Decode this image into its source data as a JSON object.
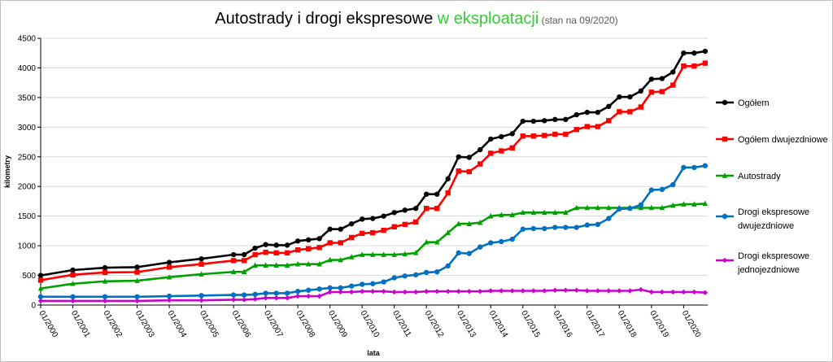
{
  "chart_data": {
    "type": "line",
    "title": {
      "part1": "Autostrady i drogi ekspresowe ",
      "part2": "w eksploatacji",
      "part3": " (stan na 09/2020)"
    },
    "xlabel": "lata",
    "ylabel": "kilometry",
    "ylim": [
      0,
      4500
    ],
    "yticks": [
      0,
      500,
      1000,
      1500,
      2000,
      2500,
      3000,
      3500,
      4000,
      4500
    ],
    "xlim": [
      2000,
      2020.75
    ],
    "xticks": [
      2000,
      2001,
      2002,
      2003,
      2004,
      2005,
      2006,
      2007,
      2008,
      2009,
      2010,
      2011,
      2012,
      2013,
      2014,
      2015,
      2016,
      2017,
      2018,
      2019,
      2020
    ],
    "xtick_labels": [
      "01/2000",
      "01/2001",
      "01/2002",
      "01/2003",
      "01/2004",
      "01/2005",
      "01/2006",
      "01/2007",
      "01/2008",
      "01/2009",
      "01/2010",
      "01/2011",
      "01/2012",
      "01/2013",
      "01/2014",
      "01/2015",
      "01/2016",
      "01/2017",
      "01/2018",
      "01/2019",
      "01/2020"
    ],
    "grid": "horizontal",
    "legend_position": "right",
    "x": [
      2000,
      2001,
      2002,
      2003,
      2004,
      2005,
      2006,
      2006.33,
      2006.67,
      2007,
      2007.33,
      2007.67,
      2008,
      2008.33,
      2008.67,
      2009,
      2009.33,
      2009.67,
      2010,
      2010.33,
      2010.67,
      2011,
      2011.33,
      2011.67,
      2012,
      2012.33,
      2012.67,
      2013,
      2013.33,
      2013.67,
      2014,
      2014.33,
      2014.67,
      2015,
      2015.33,
      2015.67,
      2016,
      2016.33,
      2016.67,
      2017,
      2017.33,
      2017.67,
      2018,
      2018.33,
      2018.67,
      2019,
      2019.33,
      2019.67,
      2020,
      2020.33,
      2020.67
    ],
    "series": [
      {
        "name": "Ogółem",
        "color": "#000000",
        "marker": "circle",
        "values": [
          500,
          590,
          630,
          640,
          720,
          780,
          850,
          850,
          960,
          1020,
          1010,
          1010,
          1080,
          1100,
          1120,
          1280,
          1280,
          1370,
          1450,
          1460,
          1500,
          1560,
          1600,
          1630,
          1870,
          1870,
          2130,
          2500,
          2490,
          2620,
          2800,
          2840,
          2890,
          3100,
          3100,
          3110,
          3130,
          3130,
          3210,
          3250,
          3250,
          3350,
          3510,
          3510,
          3610,
          3810,
          3820,
          3930,
          4250,
          4250,
          4280
        ]
      },
      {
        "name": "Ogółem dwujezdniowe",
        "color": "#ff0000",
        "marker": "square",
        "values": [
          420,
          510,
          550,
          555,
          640,
          690,
          750,
          750,
          850,
          890,
          880,
          880,
          930,
          950,
          970,
          1050,
          1050,
          1140,
          1210,
          1220,
          1260,
          1320,
          1360,
          1400,
          1630,
          1630,
          1890,
          2260,
          2250,
          2380,
          2560,
          2600,
          2650,
          2850,
          2850,
          2860,
          2880,
          2880,
          2960,
          3010,
          3010,
          3110,
          3260,
          3260,
          3340,
          3590,
          3600,
          3710,
          4030,
          4030,
          4080
        ]
      },
      {
        "name": "Autostrady",
        "color": "#00a000",
        "marker": "triangle",
        "values": [
          280,
          360,
          400,
          410,
          470,
          520,
          560,
          560,
          670,
          670,
          670,
          670,
          690,
          690,
          690,
          760,
          760,
          810,
          850,
          850,
          850,
          850,
          860,
          880,
          1060,
          1060,
          1220,
          1370,
          1370,
          1390,
          1500,
          1520,
          1520,
          1560,
          1560,
          1560,
          1560,
          1560,
          1640,
          1640,
          1640,
          1640,
          1640,
          1640,
          1640,
          1640,
          1640,
          1680,
          1700,
          1700,
          1710
        ]
      },
      {
        "name": "Drogi ekspresowe dwujezdniowe",
        "color": "#0070c0",
        "marker": "circle",
        "values": [
          140,
          140,
          140,
          140,
          150,
          160,
          170,
          170,
          180,
          200,
          200,
          200,
          230,
          250,
          270,
          290,
          290,
          320,
          350,
          360,
          390,
          460,
          490,
          510,
          550,
          560,
          660,
          880,
          870,
          980,
          1050,
          1070,
          1110,
          1280,
          1290,
          1290,
          1310,
          1310,
          1310,
          1350,
          1360,
          1460,
          1620,
          1630,
          1690,
          1940,
          1950,
          2030,
          2320,
          2320,
          2350
        ]
      },
      {
        "name": "Drogi ekspresowe jednojezdniowe",
        "color": "#cc00cc",
        "marker": "diamond",
        "values": [
          70,
          70,
          70,
          70,
          80,
          80,
          90,
          90,
          100,
          120,
          120,
          120,
          150,
          150,
          150,
          220,
          220,
          220,
          230,
          230,
          230,
          220,
          220,
          220,
          230,
          230,
          230,
          230,
          230,
          230,
          240,
          240,
          240,
          240,
          240,
          240,
          250,
          250,
          250,
          240,
          240,
          240,
          240,
          240,
          260,
          220,
          220,
          220,
          220,
          220,
          210
        ]
      }
    ]
  }
}
